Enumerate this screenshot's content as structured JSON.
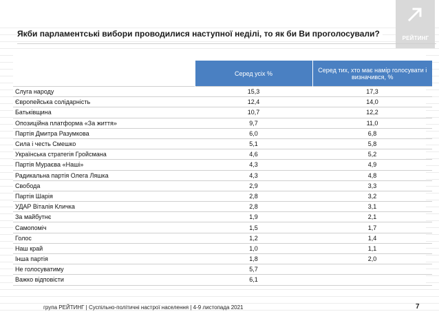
{
  "title": "Якби парламентські вибори проводилися наступної неділі, то як би Ви проголосували?",
  "logo": {
    "text": "РЕЙТИНГ",
    "icon": "arrow-up-right-icon"
  },
  "table": {
    "headers": [
      "",
      "Серед усіх %",
      "Серед тих, хто має намір голосувати і визначився, %"
    ],
    "rows": [
      {
        "party": "Слуга народу",
        "all": "15,3",
        "decided": "17,3"
      },
      {
        "party": "Європейська солідарність",
        "all": "12,4",
        "decided": "14,0"
      },
      {
        "party": "Батьківщина",
        "all": "10,7",
        "decided": "12,2"
      },
      {
        "party": "Опозиційна платформа «За життя»",
        "all": "9,7",
        "decided": "11,0"
      },
      {
        "party": "Партія Дмитра Разумкова",
        "all": "6,0",
        "decided": "6,8"
      },
      {
        "party": "Сила і честь Смешко",
        "all": "5,1",
        "decided": "5,8"
      },
      {
        "party": "Українська стратегія Гройсмана",
        "all": "4,6",
        "decided": "5,2"
      },
      {
        "party": "Партія Мураєва «Наші»",
        "all": "4,3",
        "decided": "4,9"
      },
      {
        "party": "Радикальна партія Олега Ляшка",
        "all": "4,3",
        "decided": "4,8"
      },
      {
        "party": "Свобода",
        "all": "2,9",
        "decided": "3,3"
      },
      {
        "party": "Партія Шарія",
        "all": "2,8",
        "decided": "3,2"
      },
      {
        "party": "УДАР Віталія Кличка",
        "all": "2,8",
        "decided": "3,1"
      },
      {
        "party": "За майбутнє",
        "all": "1,9",
        "decided": "2,1"
      },
      {
        "party": "Самопоміч",
        "all": "1,5",
        "decided": "1,7"
      },
      {
        "party": "Голос",
        "all": "1,2",
        "decided": "1,4"
      },
      {
        "party": "Наш край",
        "all": "1,0",
        "decided": "1,1"
      },
      {
        "party": "Інша партія",
        "all": "1,8",
        "decided": "2,0"
      },
      {
        "party": "Не голосуватиму",
        "all": "5,7",
        "decided": ""
      },
      {
        "party": "Важко відповісти",
        "all": "6,1",
        "decided": ""
      }
    ]
  },
  "footer": "група РЕЙТИНГ | Суспільно-політичні настрої населення  | 4-9 листопада 2021",
  "page_number": "7",
  "colors": {
    "header_bg": "#4a80c2",
    "logo_bg": "#d9d9d9"
  }
}
